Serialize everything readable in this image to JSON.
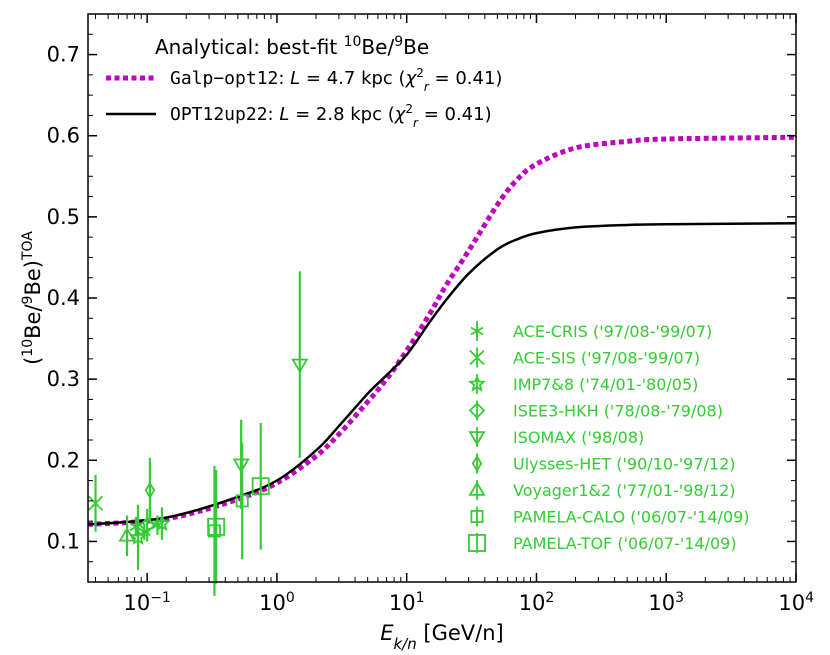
{
  "chart_data": {
    "type": "scatter",
    "title": "Analytical: best-fit ¹⁰Be/⁹Be",
    "xlabel": "E_{k/n} [GeV/n]",
    "ylabel": "(¹⁰Be/⁹Be)^{TOA}",
    "xscale": "log",
    "xlim": [
      0.035,
      10000
    ],
    "ylim": [
      0.05,
      0.75
    ],
    "xticks": [
      {
        "value": 0.1,
        "base": "10",
        "exp": "−1"
      },
      {
        "value": 1,
        "base": "10",
        "exp": "0"
      },
      {
        "value": 10,
        "base": "10",
        "exp": "1"
      },
      {
        "value": 100,
        "base": "10",
        "exp": "2"
      },
      {
        "value": 1000,
        "base": "10",
        "exp": "3"
      },
      {
        "value": 10000,
        "base": "10",
        "exp": "4"
      }
    ],
    "yticks": [
      "0.1",
      "0.2",
      "0.3",
      "0.4",
      "0.5",
      "0.6",
      "0.7"
    ],
    "grid": false,
    "model_legend_placement": "top-left",
    "data_legend_placement": "lower-right",
    "model_color": "#c000c0",
    "model2_color": "#000000",
    "data_color": "#33cc33",
    "models": [
      {
        "name_code": "Galp−opt12",
        "name_rest": ": L = 4.7 kpc (χ²_r = 0.41)",
        "style": "dotted",
        "color": "#c000c0",
        "points": [
          [
            0.035,
            0.121
          ],
          [
            0.1,
            0.125
          ],
          [
            0.2,
            0.133
          ],
          [
            0.5,
            0.152
          ],
          [
            1,
            0.172
          ],
          [
            2,
            0.205
          ],
          [
            3,
            0.232
          ],
          [
            5,
            0.272
          ],
          [
            7,
            0.3
          ],
          [
            10,
            0.335
          ],
          [
            15,
            0.38
          ],
          [
            20,
            0.415
          ],
          [
            30,
            0.458
          ],
          [
            50,
            0.515
          ],
          [
            70,
            0.545
          ],
          [
            100,
            0.565
          ],
          [
            200,
            0.585
          ],
          [
            500,
            0.593
          ],
          [
            1000,
            0.596
          ],
          [
            10000,
            0.598
          ]
        ]
      },
      {
        "name_code": "OPT12up22",
        "name_rest": ": L = 2.8 kpc (χ²_r = 0.41)",
        "style": "solid",
        "color": "#000000",
        "points": [
          [
            0.035,
            0.121
          ],
          [
            0.1,
            0.126
          ],
          [
            0.2,
            0.135
          ],
          [
            0.5,
            0.155
          ],
          [
            1,
            0.175
          ],
          [
            2,
            0.212
          ],
          [
            3,
            0.242
          ],
          [
            5,
            0.282
          ],
          [
            7,
            0.305
          ],
          [
            10,
            0.33
          ],
          [
            15,
            0.37
          ],
          [
            20,
            0.397
          ],
          [
            30,
            0.43
          ],
          [
            50,
            0.46
          ],
          [
            70,
            0.472
          ],
          [
            100,
            0.48
          ],
          [
            200,
            0.487
          ],
          [
            500,
            0.49
          ],
          [
            1000,
            0.491
          ],
          [
            10000,
            0.492
          ]
        ]
      }
    ],
    "series": [
      {
        "name": "ACE-CRIS ('97/08-'99/07)",
        "marker": "tri_star",
        "points": [
          {
            "x": 0.082,
            "y": 0.118,
            "yerr": 0.012
          },
          {
            "x": 0.095,
            "y": 0.112,
            "yerr": 0.01
          },
          {
            "x": 0.12,
            "y": 0.12,
            "yerr": 0.012
          }
        ]
      },
      {
        "name": "ACE-SIS ('97/08-'99/07)",
        "marker": "x",
        "points": [
          {
            "x": 0.04,
            "y": 0.147,
            "yerr": 0.035
          }
        ]
      },
      {
        "name": "IMP7&8 ('74/01-'80/05)",
        "marker": "star",
        "points": [
          {
            "x": 0.085,
            "y": 0.105,
            "yerr": 0.04
          },
          {
            "x": 0.13,
            "y": 0.122,
            "yerr": 0.02
          }
        ]
      },
      {
        "name": "ISEE3-HKH ('78/08-'79/08)",
        "marker": "diamond",
        "points": [
          {
            "x": 0.1,
            "y": 0.12,
            "yerr": 0.02
          }
        ]
      },
      {
        "name": "ISOMAX ('98/08)",
        "marker": "triangle_down",
        "points": [
          {
            "x": 0.53,
            "y": 0.195,
            "yerr": 0.055
          },
          {
            "x": 1.5,
            "y": 0.318,
            "yerr": 0.115
          }
        ]
      },
      {
        "name": "Ulysses-HET ('90/10-'97/12)",
        "marker": "thin_diamond",
        "points": [
          {
            "x": 0.105,
            "y": 0.163,
            "yerr": 0.04
          }
        ]
      },
      {
        "name": "Voyager1&2 ('77/01-'98/12)",
        "marker": "triangle_up",
        "points": [
          {
            "x": 0.07,
            "y": 0.107,
            "yerr": 0.025
          }
        ]
      },
      {
        "name": "PAMELA-CALO ('06/07-'14/09)",
        "marker": "square_small",
        "points": [
          {
            "x": 0.33,
            "y": 0.113,
            "yerr": 0.08
          },
          {
            "x": 0.54,
            "y": 0.15,
            "yerr": 0.072
          }
        ]
      },
      {
        "name": "PAMELA-TOF ('06/07-'14/09)",
        "marker": "square_large",
        "points": [
          {
            "x": 0.34,
            "y": 0.118,
            "yerr": 0.07
          },
          {
            "x": 0.75,
            "y": 0.168,
            "yerr": 0.078
          }
        ]
      }
    ]
  }
}
